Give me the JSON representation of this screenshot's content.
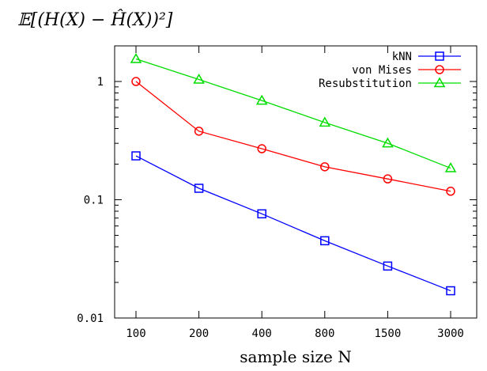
{
  "chart_data": {
    "type": "line",
    "ylabel": "𝔼[(H(X) − Ĥ(X))²]",
    "xlabel": "sample size N",
    "x_scale": "categorical",
    "y_scale": "log",
    "categories": [
      "100",
      "200",
      "400",
      "800",
      "1500",
      "3000"
    ],
    "ylim": [
      0.01,
      2
    ],
    "yticks": [
      {
        "value": 0.01,
        "label": "0.01"
      },
      {
        "value": 0.1,
        "label": "0.1"
      },
      {
        "value": 1,
        "label": "1"
      }
    ],
    "grid": false,
    "legend_position": "top-right",
    "series": [
      {
        "name": "kNN",
        "color": "#0000ff",
        "marker": "square",
        "values": [
          0.235,
          0.125,
          0.076,
          0.045,
          0.0275,
          0.017
        ]
      },
      {
        "name": "von Mises",
        "color": "#ff0000",
        "marker": "circle",
        "values": [
          1.0,
          0.38,
          0.27,
          0.19,
          0.15,
          0.118
        ]
      },
      {
        "name": "Resubstitution",
        "color": "#00dd00",
        "marker": "triangle",
        "values": [
          1.55,
          1.04,
          0.69,
          0.45,
          0.3,
          0.185
        ]
      }
    ]
  }
}
